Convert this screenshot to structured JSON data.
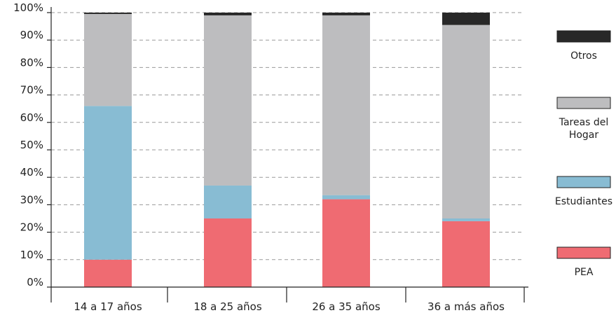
{
  "chart_data": {
    "type": "bar",
    "stacked": true,
    "categories": [
      "14 a 17 años",
      "18 a 25 años",
      "26 a 35 años",
      "36 a más años"
    ],
    "series": [
      {
        "name": "PEA",
        "color": "#ef6b72",
        "values": [
          10,
          25,
          32,
          24
        ]
      },
      {
        "name": "Estudiantes",
        "color": "#88bcd3",
        "values": [
          56,
          12,
          1.5,
          1
        ]
      },
      {
        "name": "Tareas del Hogar",
        "color": "#bdbdbf",
        "values": [
          33.5,
          62,
          65.5,
          70.5
        ]
      },
      {
        "name": "Otros",
        "color": "#282828",
        "values": [
          0.5,
          1,
          1,
          4.5
        ]
      }
    ],
    "y_ticks": [
      "0%",
      "10%",
      "20%",
      "30%",
      "40%",
      "50%",
      "60%",
      "70%",
      "80%",
      "90%",
      "100%"
    ],
    "ylim": [
      0,
      100
    ],
    "grid": "horizontal-dashed",
    "legend_placement": "right",
    "legend_order": [
      "Otros",
      "Tareas del Hogar",
      "Estudiantes",
      "PEA"
    ]
  }
}
